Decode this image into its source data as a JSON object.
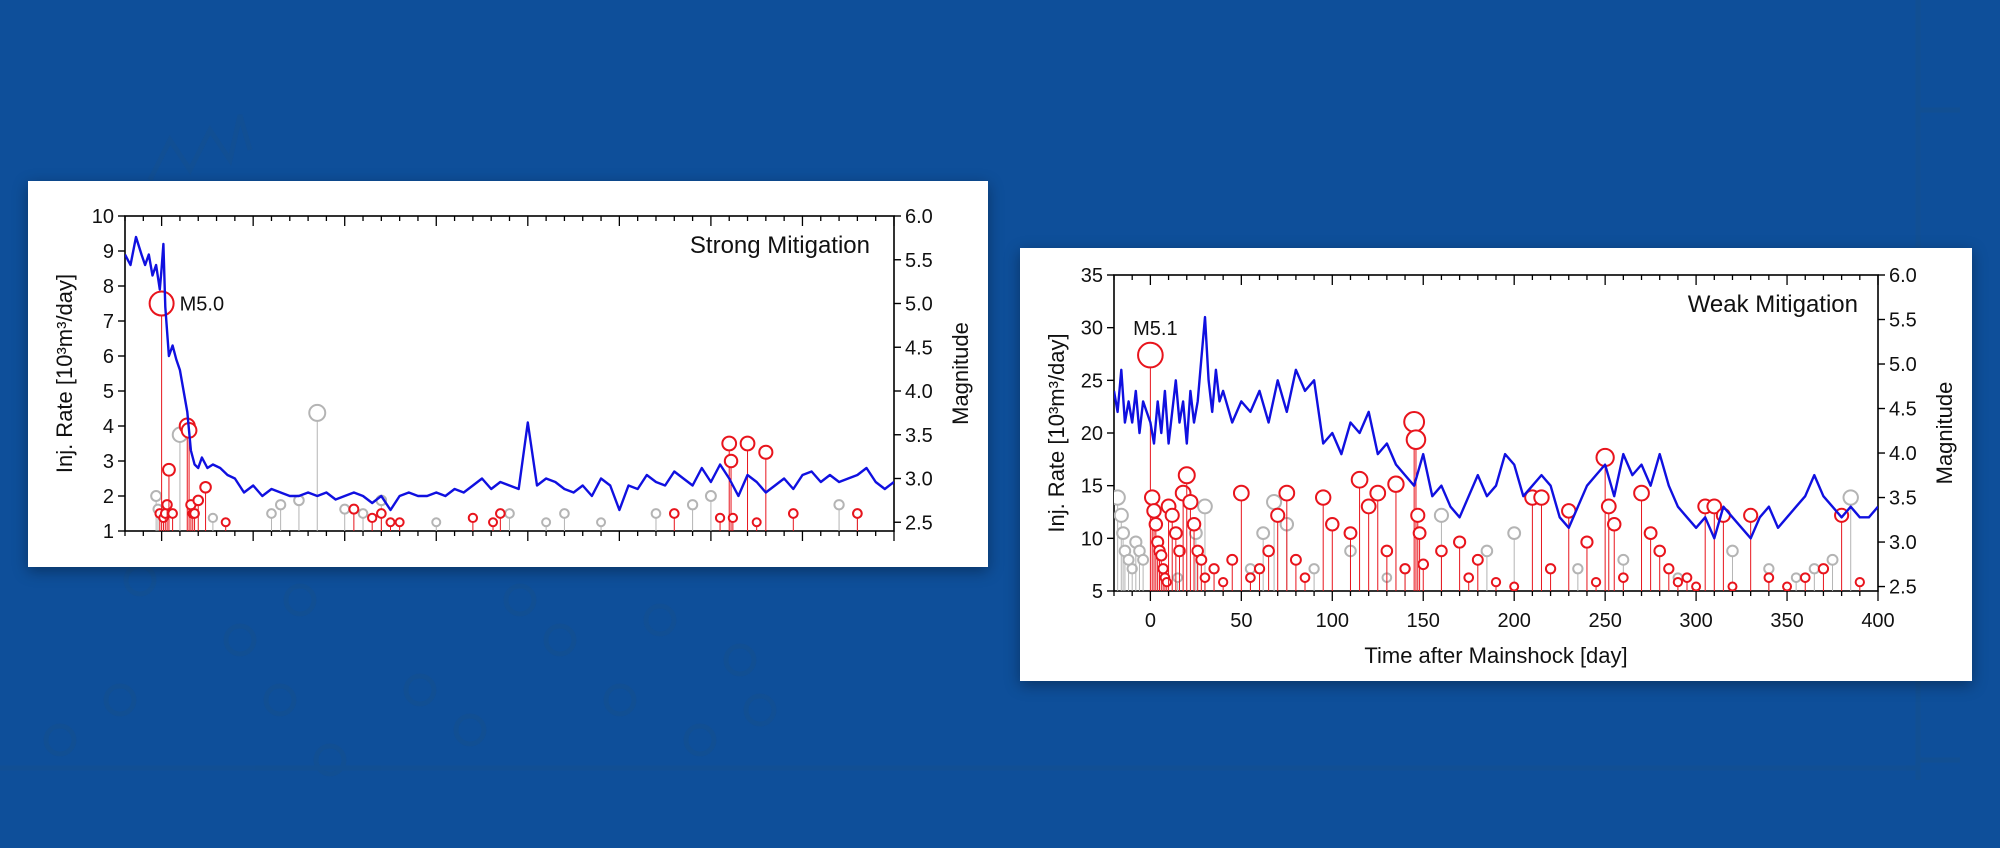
{
  "colors": {
    "background": "#0e4f9a",
    "rate_line": "#1010e0",
    "triggered_event": "#e8141c",
    "other_event": "#b4b4b4"
  },
  "chart_data": [
    {
      "type": "line",
      "title": "Strong Mitigation",
      "xlabel": "",
      "ylabel": "Inj. Rate [10³m³/day]",
      "ylabel2": "Magnitude",
      "xlim": [
        -20,
        400
      ],
      "ylim": [
        1,
        10
      ],
      "y2lim": [
        2.4,
        6.0
      ],
      "yticks": [
        "1",
        "2",
        "3",
        "4",
        "5",
        "6",
        "7",
        "8",
        "9",
        "10"
      ],
      "y2ticks": [
        "2.5",
        "3.0",
        "3.5",
        "4.0",
        "4.5",
        "5.0",
        "5.5",
        "6.0"
      ],
      "show_x_tick_labels": false,
      "annotation": {
        "text": "M5.0",
        "x": 0,
        "mag": 5.0
      },
      "series": [
        {
          "kind": "rate",
          "x": [
            -20,
            -17,
            -14,
            -11,
            -9,
            -7,
            -5,
            -3,
            -1,
            0,
            1,
            2,
            4,
            6,
            8,
            10,
            12,
            14,
            16,
            18,
            20,
            22,
            25,
            28,
            32,
            36,
            40,
            45,
            50,
            55,
            60,
            65,
            70,
            75,
            80,
            85,
            90,
            95,
            100,
            105,
            110,
            115,
            120,
            125,
            130,
            135,
            140,
            145,
            150,
            155,
            160,
            165,
            170,
            175,
            180,
            185,
            190,
            195,
            200,
            205,
            210,
            215,
            220,
            225,
            230,
            235,
            240,
            245,
            250,
            255,
            260,
            265,
            270,
            275,
            280,
            285,
            290,
            295,
            300,
            305,
            310,
            315,
            320,
            325,
            330,
            335,
            340,
            345,
            350,
            355,
            360,
            365,
            370,
            375,
            380,
            385,
            390,
            395,
            400
          ],
          "y": [
            8.9,
            8.6,
            9.4,
            8.9,
            8.6,
            8.9,
            8.3,
            8.6,
            7.9,
            8.5,
            9.2,
            7.4,
            6.0,
            6.3,
            5.9,
            5.6,
            5.0,
            4.4,
            3.3,
            2.9,
            2.8,
            3.1,
            2.8,
            2.9,
            2.8,
            2.6,
            2.5,
            2.1,
            2.3,
            2.0,
            2.2,
            2.1,
            2.0,
            2.0,
            2.1,
            2.0,
            2.1,
            1.9,
            2.0,
            2.1,
            2.0,
            1.8,
            2.0,
            1.6,
            2.0,
            2.1,
            2.0,
            2.0,
            2.1,
            2.0,
            2.2,
            2.1,
            2.3,
            2.5,
            2.2,
            2.4,
            2.3,
            2.2,
            4.1,
            2.3,
            2.5,
            2.4,
            2.2,
            2.1,
            2.3,
            2.0,
            2.5,
            2.3,
            1.6,
            2.3,
            2.2,
            2.6,
            2.4,
            2.3,
            2.7,
            2.5,
            2.3,
            2.8,
            2.4,
            2.9,
            2.5,
            2.0,
            2.6,
            2.4,
            2.1,
            2.3,
            2.5,
            2.2,
            2.6,
            2.7,
            2.4,
            2.6,
            2.4,
            2.5,
            2.6,
            2.8,
            2.4,
            2.2,
            2.4
          ]
        },
        {
          "kind": "events",
          "name": "triggered",
          "x": [
            0,
            -1,
            1,
            2,
            3,
            4,
            6,
            14,
            15,
            16,
            17,
            18,
            20,
            24,
            35,
            105,
            115,
            120,
            125,
            130,
            170,
            181,
            185,
            280,
            305,
            310,
            311,
            312,
            320,
            325,
            330,
            345,
            380
          ],
          "mag": [
            5.0,
            2.6,
            2.55,
            2.6,
            2.7,
            3.1,
            2.6,
            3.6,
            3.55,
            2.7,
            2.6,
            2.6,
            2.75,
            2.9,
            2.5,
            2.65,
            2.55,
            2.6,
            2.5,
            2.5,
            2.55,
            2.5,
            2.6,
            2.6,
            2.55,
            3.4,
            3.2,
            2.55,
            3.4,
            2.5,
            3.3,
            2.6,
            2.6
          ]
        },
        {
          "kind": "events",
          "name": "other",
          "x": [
            -3,
            -2,
            10,
            28,
            60,
            65,
            75,
            85,
            100,
            110,
            120,
            150,
            190,
            210,
            220,
            240,
            270,
            290,
            300,
            370,
            380
          ],
          "mag": [
            2.8,
            2.65,
            3.5,
            2.55,
            2.6,
            2.7,
            2.75,
            3.75,
            2.65,
            2.6,
            2.75,
            2.5,
            2.6,
            2.5,
            2.6,
            2.5,
            2.6,
            2.7,
            2.8,
            2.7,
            2.6
          ]
        }
      ]
    },
    {
      "type": "line",
      "title": "Weak Mitigation",
      "xlabel": "Time after Mainshock [day]",
      "ylabel": "Inj. Rate [10³m³/day]",
      "ylabel2": "Magnitude",
      "xlim": [
        -20,
        400
      ],
      "ylim": [
        5,
        35
      ],
      "y2lim": [
        2.45,
        6.0
      ],
      "xticks": [
        "0",
        "50",
        "100",
        "150",
        "200",
        "250",
        "300",
        "350",
        "400"
      ],
      "yticks": [
        "5",
        "10",
        "15",
        "20",
        "25",
        "30",
        "35"
      ],
      "y2ticks": [
        "2.5",
        "3.0",
        "3.5",
        "4.0",
        "4.5",
        "5.0",
        "5.5",
        "6.0"
      ],
      "show_x_tick_labels": true,
      "annotation": {
        "text": "M5.1",
        "x": 0,
        "mag": 5.1
      },
      "series": [
        {
          "kind": "rate",
          "x": [
            -20,
            -18,
            -16,
            -14,
            -12,
            -10,
            -8,
            -6,
            -4,
            -2,
            0,
            2,
            4,
            6,
            8,
            10,
            12,
            14,
            16,
            18,
            20,
            22,
            24,
            26,
            28,
            30,
            32,
            34,
            36,
            38,
            40,
            45,
            50,
            55,
            60,
            65,
            70,
            75,
            80,
            85,
            90,
            95,
            100,
            105,
            110,
            115,
            120,
            125,
            130,
            135,
            140,
            145,
            150,
            155,
            160,
            165,
            170,
            175,
            180,
            185,
            190,
            195,
            200,
            205,
            210,
            215,
            220,
            225,
            230,
            235,
            240,
            245,
            250,
            255,
            260,
            265,
            270,
            275,
            280,
            285,
            290,
            295,
            300,
            305,
            310,
            315,
            320,
            325,
            330,
            335,
            340,
            345,
            350,
            355,
            360,
            365,
            370,
            375,
            380,
            385,
            390,
            395,
            400
          ],
          "y": [
            24,
            22,
            26,
            21,
            23,
            21,
            24,
            20,
            23,
            22,
            21,
            19,
            23,
            20,
            24,
            19,
            22,
            25,
            21,
            23,
            19,
            24,
            21,
            23,
            27,
            31,
            25,
            22,
            26,
            23,
            24,
            21,
            23,
            22,
            24,
            21,
            25,
            22,
            26,
            24,
            25,
            19,
            20,
            18,
            21,
            20,
            22,
            18,
            19,
            17,
            16,
            15,
            18,
            14,
            15,
            13,
            12,
            14,
            16,
            14,
            15,
            18,
            17,
            14,
            15,
            16,
            15,
            12,
            11,
            13,
            15,
            16,
            17,
            14,
            18,
            16,
            17,
            15,
            18,
            15,
            13,
            12,
            11,
            12,
            10,
            13,
            12,
            11,
            10,
            12,
            13,
            11,
            12,
            13,
            14,
            16,
            14,
            13,
            12,
            13,
            12,
            12,
            13
          ]
        },
        {
          "kind": "events",
          "name": "triggered",
          "x": [
            0,
            1,
            2,
            3,
            4,
            5,
            6,
            7,
            8,
            9,
            10,
            12,
            14,
            16,
            18,
            20,
            22,
            24,
            26,
            28,
            30,
            35,
            40,
            45,
            50,
            55,
            60,
            65,
            70,
            75,
            80,
            85,
            95,
            100,
            110,
            115,
            120,
            125,
            130,
            135,
            140,
            145,
            146,
            147,
            148,
            150,
            160,
            170,
            175,
            180,
            190,
            200,
            210,
            215,
            220,
            230,
            240,
            245,
            250,
            252,
            255,
            260,
            270,
            275,
            280,
            285,
            290,
            295,
            300,
            305,
            310,
            315,
            320,
            330,
            340,
            350,
            360,
            370,
            380,
            390
          ],
          "mag": [
            5.1,
            3.5,
            3.35,
            3.2,
            3.0,
            2.9,
            2.85,
            2.7,
            2.6,
            2.55,
            3.4,
            3.3,
            3.1,
            2.9,
            3.55,
            3.75,
            3.45,
            3.2,
            2.9,
            2.8,
            2.6,
            2.7,
            2.55,
            2.8,
            3.55,
            2.6,
            2.7,
            2.9,
            3.3,
            3.55,
            2.8,
            2.6,
            3.5,
            3.2,
            3.1,
            3.7,
            3.4,
            3.55,
            2.9,
            3.65,
            2.7,
            4.35,
            4.15,
            3.3,
            3.1,
            2.75,
            2.9,
            3.0,
            2.6,
            2.8,
            2.55,
            2.5,
            3.5,
            3.5,
            2.7,
            3.35,
            3.0,
            2.55,
            3.95,
            3.4,
            3.2,
            2.6,
            3.55,
            3.1,
            2.9,
            2.7,
            2.55,
            2.6,
            2.5,
            3.4,
            3.4,
            3.3,
            2.5,
            3.3,
            2.6,
            2.5,
            2.6,
            2.7,
            3.3,
            2.55
          ]
        },
        {
          "kind": "events",
          "name": "other",
          "x": [
            -18,
            -16,
            -15,
            -14,
            -12,
            -10,
            -8,
            -6,
            -4,
            15,
            25,
            30,
            55,
            62,
            68,
            75,
            90,
            110,
            130,
            140,
            160,
            185,
            200,
            235,
            260,
            290,
            320,
            340,
            355,
            365,
            375,
            385
          ],
          "mag": [
            3.5,
            3.3,
            3.1,
            2.9,
            2.8,
            2.7,
            3.0,
            2.9,
            2.8,
            2.6,
            3.1,
            3.4,
            2.7,
            3.1,
            3.45,
            3.2,
            2.7,
            2.9,
            2.6,
            2.7,
            3.3,
            2.9,
            3.1,
            2.7,
            2.8,
            2.6,
            2.9,
            2.7,
            2.6,
            2.7,
            2.8,
            3.5
          ]
        }
      ]
    }
  ]
}
